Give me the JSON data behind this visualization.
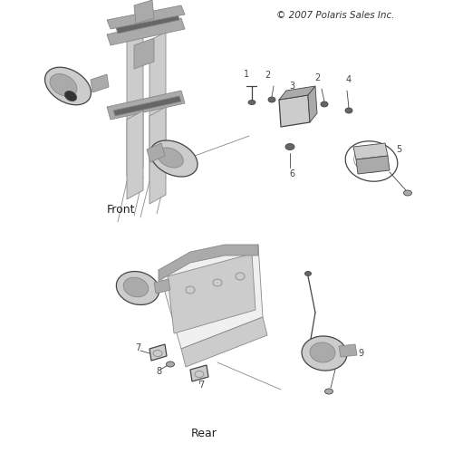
{
  "title": "© 2007 Polaris Sales Inc.",
  "bg_color": "#ffffff",
  "line_color": "#888888",
  "dark_line": "#444444",
  "label_color": "#333333",
  "light_gray": "#cccccc",
  "mid_gray": "#aaaaaa",
  "dark_gray": "#666666",
  "front_label": "Front",
  "rear_label": "Rear"
}
